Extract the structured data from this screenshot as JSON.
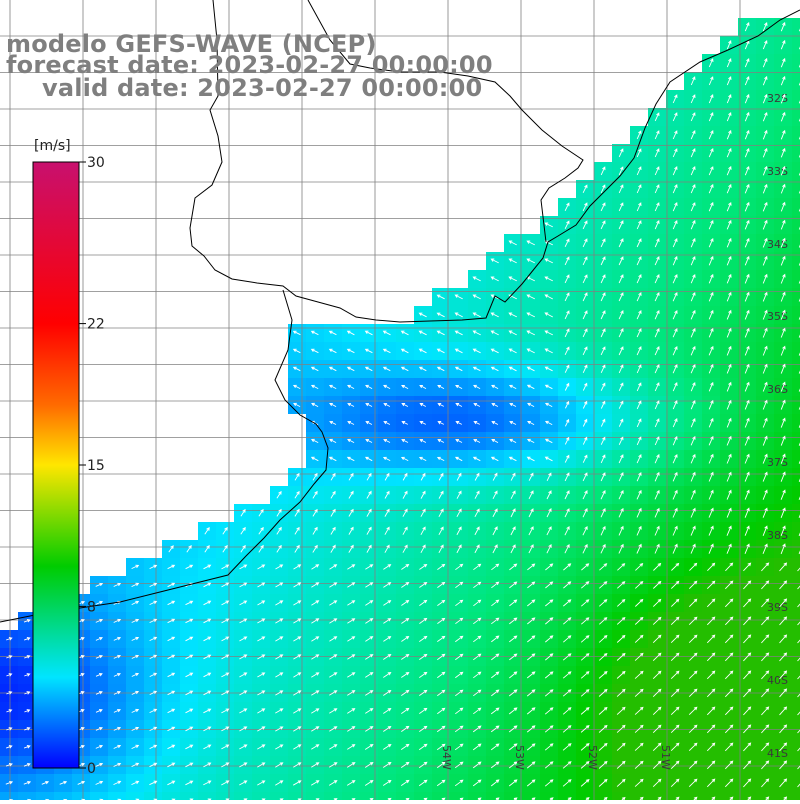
{
  "title": {
    "line1": "modelo GEFS-WAVE (NCEP)",
    "line2": "forecast date: 2023-02-27 00:00:00",
    "line3": "valid date: 2023-02-27 00:00:00"
  },
  "colorbar": {
    "unit": "[m/s]",
    "tick_labels": [
      "30",
      "22",
      "15",
      "8",
      "0"
    ],
    "tick_values": [
      30,
      22,
      15,
      8,
      0
    ],
    "colors": [
      "#c8106e",
      "#ff0000",
      "#ff6a00",
      "#ffe600",
      "#00cc00",
      "#00e5ff",
      "#0000ff"
    ]
  },
  "map": {
    "lat_labels": [
      "32S",
      "33S",
      "34S",
      "35S",
      "36S",
      "37S",
      "38S",
      "39S",
      "40S",
      "41S"
    ],
    "lon_labels": [
      "54W",
      "53W",
      "52W",
      "51W"
    ],
    "field": "wind speed with direction arrows"
  }
}
